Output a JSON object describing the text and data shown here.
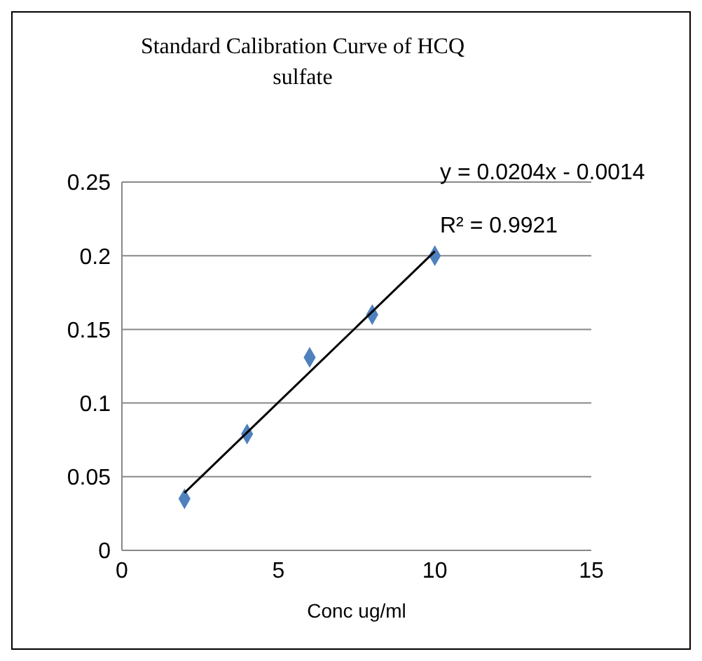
{
  "chart_data": {
    "type": "scatter",
    "title": "Standard  Calibration Curve of HCQ sulfate",
    "xlabel": "Conc   ug/ml",
    "annotations": [
      "y = 0.0204x - 0.0014",
      "R² = 0.9921"
    ],
    "x": [
      2,
      4,
      6,
      8,
      10
    ],
    "series": [
      {
        "color": "#4f81bd",
        "values": [
          0.035,
          0.079,
          0.131,
          0.16,
          0.2
        ],
        "marker": "diamond"
      },
      {
        "type": "line",
        "color": "#000000",
        "x": [
          2,
          10
        ],
        "values": [
          0.039,
          0.203
        ],
        "marker": "none"
      }
    ],
    "xlim": [
      0,
      15
    ],
    "xticks": [
      0,
      5,
      10,
      15
    ],
    "ylim": [
      0,
      0.25
    ],
    "yticks": [
      0,
      0.05,
      0.1,
      0.15,
      0.2,
      0.25
    ],
    "grid": "y"
  }
}
